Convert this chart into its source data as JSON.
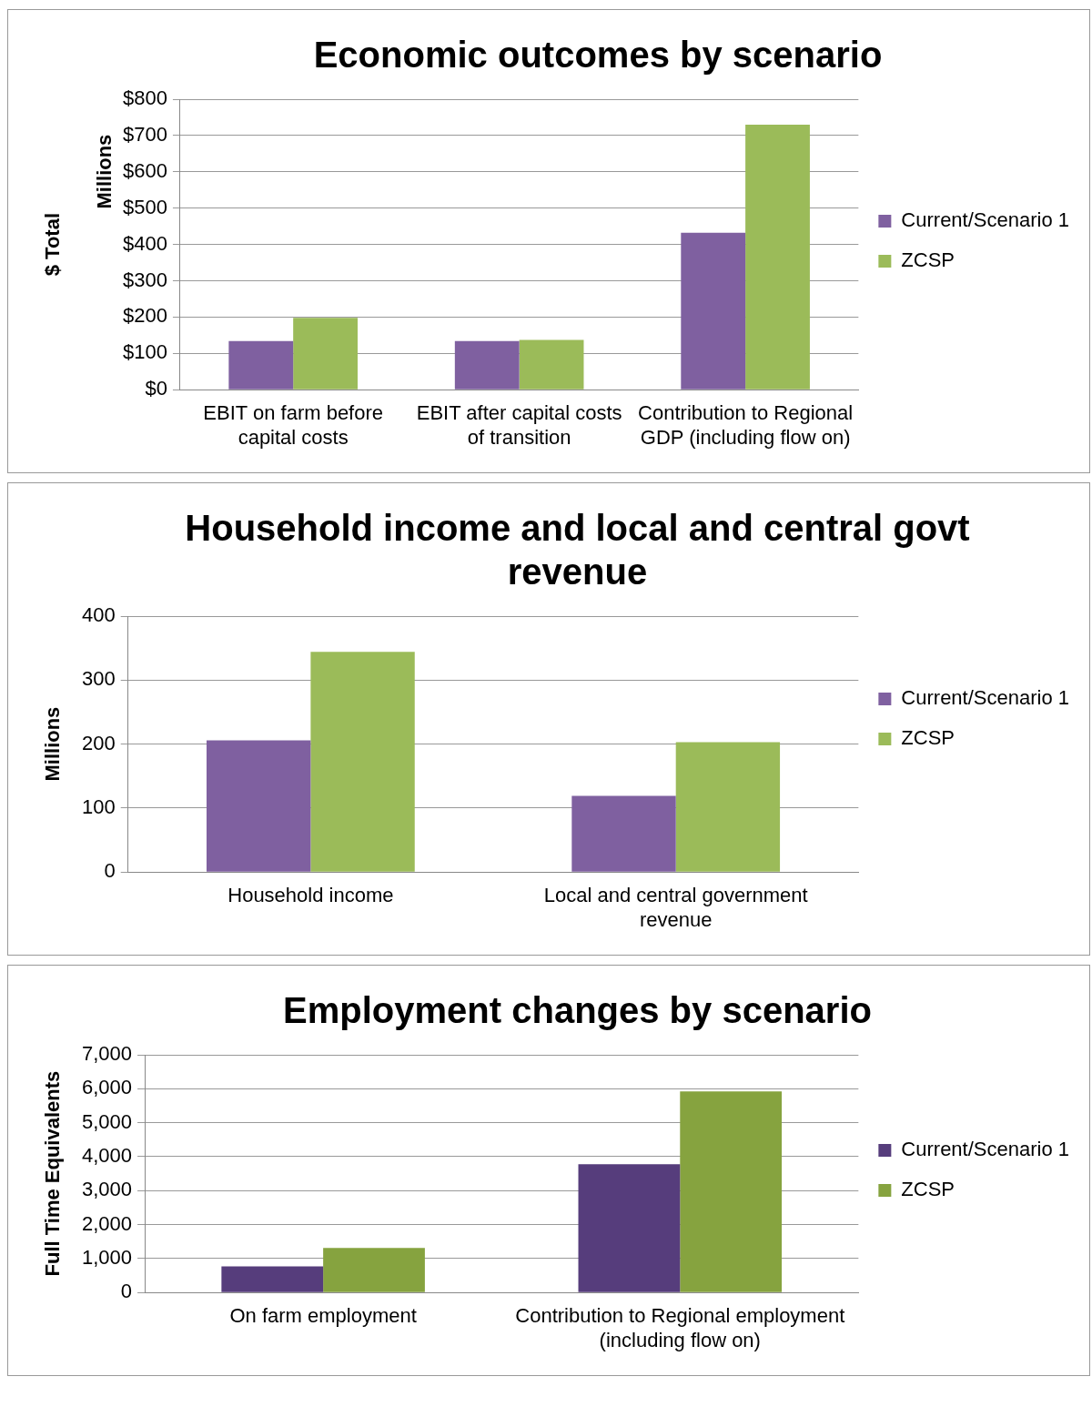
{
  "chart_data": [
    {
      "type": "bar",
      "title": "Economic outcomes by scenario",
      "ylabel": "$ Total",
      "annotations": [
        "Millions"
      ],
      "categories": [
        "EBIT on farm before capital costs",
        "EBIT after capital costs of transition",
        "Contribution to Regional GDP (including flow on)"
      ],
      "series": [
        {
          "name": "Current/Scenario 1",
          "color": "#7f60a0",
          "values": [
            134,
            134,
            432
          ]
        },
        {
          "name": "ZCSP",
          "color": "#9bbb59",
          "values": [
            198,
            137,
            730
          ]
        }
      ],
      "ylim": [
        0,
        800
      ],
      "yticks": [
        {
          "value": 0,
          "label": "$0"
        },
        {
          "value": 100,
          "label": "$100"
        },
        {
          "value": 200,
          "label": "$200"
        },
        {
          "value": 300,
          "label": "$300"
        },
        {
          "value": 400,
          "label": "$400"
        },
        {
          "value": 500,
          "label": "$500"
        },
        {
          "value": 600,
          "label": "$600"
        },
        {
          "value": 700,
          "label": "$700"
        },
        {
          "value": 800,
          "label": "$800"
        }
      ],
      "grid": "y",
      "legend": "right"
    },
    {
      "type": "bar",
      "title": "Household income and local and central govt revenue",
      "ylabel": "Millions",
      "categories": [
        "Household income",
        "Local and central government revenue"
      ],
      "series": [
        {
          "name": "Current/Scenario 1",
          "color": "#7f60a0",
          "values": [
            206,
            119
          ]
        },
        {
          "name": "ZCSP",
          "color": "#9bbb59",
          "values": [
            344,
            203
          ]
        }
      ],
      "ylim": [
        0,
        400
      ],
      "yticks": [
        0,
        100,
        200,
        300,
        400
      ],
      "grid": "y",
      "legend": "right"
    },
    {
      "type": "bar",
      "title": "Employment changes by scenario",
      "ylabel": "Full Time Equivalents",
      "categories": [
        "On farm employment",
        "Contribution to Regional employment (including flow on)"
      ],
      "series": [
        {
          "name": "Current/Scenario 1",
          "color": "#563d7c",
          "values": [
            770,
            3780
          ]
        },
        {
          "name": "ZCSP",
          "color": "#86a33f",
          "values": [
            1310,
            5920
          ]
        }
      ],
      "ylim": [
        0,
        7000
      ],
      "yticks": [
        0,
        {
          "value": 1000,
          "label": "1,000"
        },
        {
          "value": 2000,
          "label": "2,000"
        },
        {
          "value": 3000,
          "label": "3,000"
        },
        {
          "value": 4000,
          "label": "4,000"
        },
        {
          "value": 5000,
          "label": "5,000"
        },
        {
          "value": 6000,
          "label": "6,000"
        },
        {
          "value": 7000,
          "label": "7,000"
        }
      ],
      "grid": "y",
      "legend": "right"
    }
  ]
}
